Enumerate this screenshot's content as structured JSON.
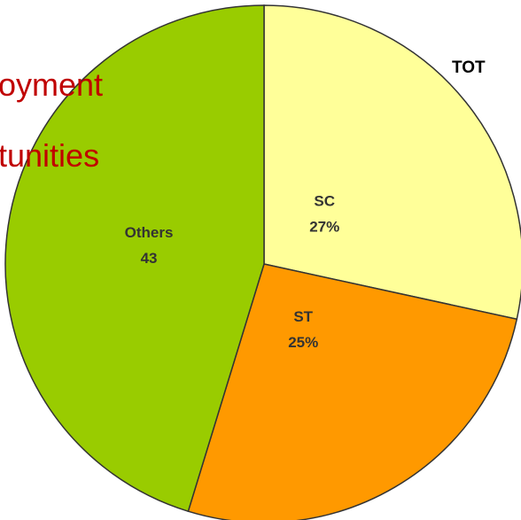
{
  "chart_data": {
    "type": "pie",
    "annotations": [
      "oyment",
      "tunities",
      "TOT"
    ],
    "categories": [
      "SC",
      "ST",
      "Others"
    ],
    "values": [
      27,
      25,
      43
    ],
    "value_labels": [
      "27%",
      "25%",
      "43"
    ],
    "colors": [
      "#ffff99",
      "#ff9900",
      "#99cc00"
    ]
  }
}
